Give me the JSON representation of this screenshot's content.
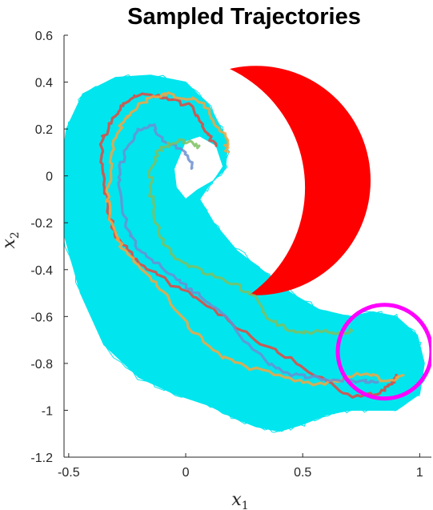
{
  "chart_data": {
    "type": "line",
    "title": "Sampled Trajectories",
    "xlabel": "x",
    "xlabel_subscript": "1",
    "ylabel": "x",
    "ylabel_subscript": "2",
    "xlim": [
      -0.52,
      1.05
    ],
    "ylim": [
      -1.2,
      0.6
    ],
    "xticks": [
      -0.5,
      0,
      0.5,
      1
    ],
    "xtick_labels": [
      "-0.5",
      "0",
      "0.5",
      "1"
    ],
    "yticks": [
      0.6,
      0.4,
      0.2,
      0,
      -0.2,
      -0.4,
      -0.6,
      -0.8,
      -1,
      -1.2
    ],
    "ytick_labels": [
      "0.6",
      "0.4",
      "0.2",
      "0",
      "-0.2",
      "-0.4",
      "-0.6",
      "-0.8",
      "-1",
      "-1.2"
    ],
    "grid": false,
    "sample_cloud": {
      "color": "#00e5ee",
      "outer_boundary": [
        [
          -0.53,
          0.05
        ],
        [
          -0.51,
          0.2
        ],
        [
          -0.44,
          0.35
        ],
        [
          -0.3,
          0.42
        ],
        [
          -0.15,
          0.43
        ],
        [
          0.0,
          0.4
        ],
        [
          0.1,
          0.3
        ],
        [
          0.18,
          0.15
        ],
        [
          0.17,
          0.03
        ],
        [
          0.1,
          -0.04
        ],
        [
          0.06,
          -0.1
        ],
        [
          0.12,
          -0.2
        ],
        [
          0.22,
          -0.32
        ],
        [
          0.35,
          -0.42
        ],
        [
          0.45,
          -0.5
        ],
        [
          0.57,
          -0.57
        ],
        [
          0.7,
          -0.6
        ],
        [
          0.8,
          -0.58
        ],
        [
          0.9,
          -0.6
        ],
        [
          0.99,
          -0.68
        ],
        [
          1.02,
          -0.8
        ],
        [
          1.0,
          -0.93
        ],
        [
          0.9,
          -1.0
        ],
        [
          0.8,
          -1.0
        ],
        [
          0.7,
          -1.0
        ],
        [
          0.6,
          -1.02
        ],
        [
          0.5,
          -1.06
        ],
        [
          0.4,
          -1.09
        ],
        [
          0.3,
          -1.07
        ],
        [
          0.2,
          -1.03
        ],
        [
          0.1,
          -0.98
        ],
        [
          -0.05,
          -0.93
        ],
        [
          -0.2,
          -0.86
        ],
        [
          -0.35,
          -0.72
        ],
        [
          -0.45,
          -0.5
        ],
        [
          -0.52,
          -0.25
        ],
        [
          -0.53,
          0.05
        ]
      ],
      "inner_boundary": [
        [
          -0.05,
          0.03
        ],
        [
          0.0,
          0.15
        ],
        [
          0.06,
          0.17
        ],
        [
          0.13,
          0.13
        ],
        [
          0.16,
          0.04
        ],
        [
          0.12,
          -0.02
        ],
        [
          0.05,
          -0.06
        ],
        [
          0.0,
          -0.1
        ],
        [
          -0.04,
          -0.05
        ],
        [
          -0.05,
          0.03
        ]
      ]
    },
    "obstacle": {
      "color": "#ff0000",
      "shape": "crescent",
      "outer_circle": {
        "center": [
          0.3,
          -0.02
        ],
        "radius": 0.49
      },
      "cutout_circle": {
        "center": [
          -0.05,
          -0.05
        ],
        "radius": 0.56
      }
    },
    "target_set": {
      "color": "#ff00ff",
      "shape": "circle",
      "center": [
        0.85,
        -0.75
      ],
      "radius": 0.2
    },
    "series": [
      {
        "color": "#e8453c",
        "points": [
          [
            0.13,
            0.13
          ],
          [
            0.1,
            0.17
          ],
          [
            0.05,
            0.24
          ],
          [
            0.02,
            0.3
          ],
          [
            -0.05,
            0.32
          ],
          [
            -0.12,
            0.34
          ],
          [
            -0.2,
            0.35
          ],
          [
            -0.25,
            0.32
          ],
          [
            -0.28,
            0.28
          ],
          [
            -0.33,
            0.22
          ],
          [
            -0.36,
            0.15
          ],
          [
            -0.36,
            0.05
          ],
          [
            -0.35,
            -0.05
          ],
          [
            -0.33,
            -0.15
          ],
          [
            -0.3,
            -0.25
          ],
          [
            -0.25,
            -0.32
          ],
          [
            -0.18,
            -0.38
          ],
          [
            -0.08,
            -0.45
          ],
          [
            0.05,
            -0.52
          ],
          [
            0.18,
            -0.62
          ],
          [
            0.3,
            -0.7
          ],
          [
            0.45,
            -0.78
          ],
          [
            0.6,
            -0.88
          ],
          [
            0.72,
            -0.94
          ],
          [
            0.82,
            -0.93
          ],
          [
            0.87,
            -0.9
          ],
          [
            0.9,
            -0.85
          ]
        ]
      },
      {
        "color": "#f7a440",
        "points": [
          [
            0.18,
            0.1
          ],
          [
            0.17,
            0.16
          ],
          [
            0.12,
            0.24
          ],
          [
            0.07,
            0.32
          ],
          [
            0.0,
            0.33
          ],
          [
            -0.08,
            0.35
          ],
          [
            -0.15,
            0.34
          ],
          [
            -0.22,
            0.28
          ],
          [
            -0.27,
            0.23
          ],
          [
            -0.3,
            0.15
          ],
          [
            -0.32,
            0.05
          ],
          [
            -0.33,
            -0.05
          ],
          [
            -0.33,
            -0.15
          ],
          [
            -0.3,
            -0.25
          ],
          [
            -0.26,
            -0.32
          ],
          [
            -0.2,
            -0.38
          ],
          [
            -0.12,
            -0.47
          ],
          [
            -0.05,
            -0.56
          ],
          [
            0.05,
            -0.68
          ],
          [
            0.15,
            -0.77
          ],
          [
            0.28,
            -0.82
          ],
          [
            0.42,
            -0.86
          ],
          [
            0.55,
            -0.89
          ],
          [
            0.67,
            -0.87
          ],
          [
            0.77,
            -0.84
          ],
          [
            0.87,
            -0.88
          ],
          [
            0.93,
            -0.85
          ]
        ]
      },
      {
        "color": "#6b8fd1",
        "points": [
          [
            0.03,
            0.03
          ],
          [
            0.0,
            0.09
          ],
          [
            -0.05,
            0.13
          ],
          [
            -0.1,
            0.16
          ],
          [
            -0.15,
            0.22
          ],
          [
            -0.2,
            0.2
          ],
          [
            -0.25,
            0.12
          ],
          [
            -0.28,
            0.04
          ],
          [
            -0.28,
            -0.05
          ],
          [
            -0.27,
            -0.15
          ],
          [
            -0.24,
            -0.25
          ],
          [
            -0.2,
            -0.32
          ],
          [
            -0.12,
            -0.38
          ],
          [
            -0.03,
            -0.45
          ],
          [
            0.05,
            -0.5
          ],
          [
            0.15,
            -0.58
          ],
          [
            0.25,
            -0.7
          ],
          [
            0.35,
            -0.8
          ],
          [
            0.45,
            -0.85
          ],
          [
            0.55,
            -0.86
          ],
          [
            0.65,
            -0.87
          ],
          [
            0.75,
            -0.88
          ],
          [
            0.82,
            -0.88
          ]
        ]
      },
      {
        "color": "#7fbf60",
        "points": [
          [
            0.06,
            0.12
          ],
          [
            0.03,
            0.14
          ],
          [
            -0.03,
            0.15
          ],
          [
            -0.08,
            0.13
          ],
          [
            -0.12,
            0.1
          ],
          [
            -0.15,
            0.02
          ],
          [
            -0.15,
            -0.08
          ],
          [
            -0.13,
            -0.18
          ],
          [
            -0.1,
            -0.27
          ],
          [
            -0.05,
            -0.34
          ],
          [
            0.03,
            -0.39
          ],
          [
            0.13,
            -0.43
          ],
          [
            0.23,
            -0.47
          ],
          [
            0.3,
            -0.53
          ],
          [
            0.35,
            -0.6
          ],
          [
            0.42,
            -0.65
          ],
          [
            0.5,
            -0.67
          ],
          [
            0.58,
            -0.66
          ],
          [
            0.65,
            -0.68
          ],
          [
            0.71,
            -0.66
          ]
        ]
      }
    ]
  }
}
